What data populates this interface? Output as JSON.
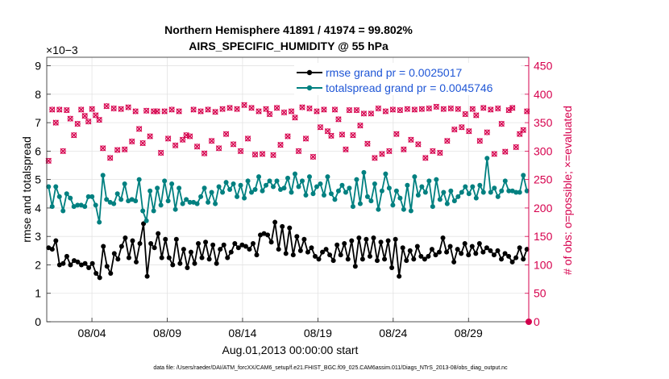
{
  "chart_data": {
    "type": "line",
    "title": "Northern Hemisphere 41891 / 41974 = 99.802%",
    "subtitle": "AIRS_SPECIFIC_HUMIDITY @ 55 hPa",
    "xlabel": "Aug.01,2013 00:00:00 start",
    "ylabel": "rmse and totalspread",
    "y2label": "# of obs: o=possible; ×=evaluated",
    "y_exponent": "×10−3",
    "x_ticks": [
      "08/04",
      "08/09",
      "08/14",
      "08/19",
      "08/24",
      "08/29"
    ],
    "x_tick_days": [
      4,
      9,
      14,
      19,
      24,
      29
    ],
    "xlim_days": [
      1,
      33
    ],
    "ylim": [
      0,
      9.3
    ],
    "y_ticks": [
      "0",
      "1",
      "2",
      "3",
      "4",
      "5",
      "6",
      "7",
      "8",
      "9"
    ],
    "y2lim": [
      0,
      465
    ],
    "y2_ticks": [
      "0",
      "50",
      "100",
      "150",
      "200",
      "250",
      "300",
      "350",
      "400",
      "450"
    ],
    "colors": {
      "rmse": "#000000",
      "spread": "#008080",
      "obs": "#d6004d",
      "legend_text": "#1f56d6"
    },
    "series": [
      {
        "name": "rmse grand pr = 0.0025017",
        "key": "rmse",
        "values": [
          2.6,
          2.55,
          2.85,
          2.0,
          2.05,
          2.3,
          2.0,
          2.15,
          2.1,
          2.0,
          2.05,
          1.9,
          2.05,
          1.7,
          1.55,
          2.65,
          1.95,
          1.7,
          2.4,
          2.2,
          2.65,
          2.95,
          2.25,
          2.85,
          2.1,
          2.75,
          3.45,
          1.6,
          2.75,
          2.6,
          3.1,
          2.25,
          2.9,
          2.25,
          2.0,
          2.9,
          2.05,
          2.55,
          1.9,
          2.45,
          2.05,
          2.75,
          2.25,
          2.8,
          2.2,
          2.7,
          2.05,
          2.55,
          2.7,
          2.25,
          2.45,
          2.75,
          2.6,
          2.7,
          2.65,
          2.55,
          2.75,
          2.35,
          3.05,
          3.1,
          3.05,
          2.8,
          3.5,
          2.55,
          3.35,
          2.4,
          3.3,
          2.35,
          3.0,
          2.5,
          2.9,
          2.45,
          2.6,
          2.3,
          2.2,
          2.45,
          2.55,
          2.35,
          2.15,
          2.7,
          2.35,
          2.75,
          2.2,
          2.85,
          1.95,
          2.95,
          2.2,
          2.9,
          2.3,
          2.95,
          2.15,
          2.8,
          2.2,
          2.85,
          1.9,
          2.9,
          1.6,
          2.6,
          2.15,
          2.5,
          2.2,
          2.65,
          2.3,
          2.2,
          2.3,
          2.55,
          2.35,
          2.45,
          2.95,
          2.45,
          2.65,
          2.1,
          2.55,
          2.4,
          2.75,
          2.35,
          2.65,
          2.4,
          2.75,
          2.45,
          2.6,
          2.5,
          2.35,
          2.5,
          2.2,
          2.4,
          2.3,
          2.1,
          2.25,
          2.6,
          2.2,
          2.55
        ]
      },
      {
        "name": "totalspread grand pr = 0.0045746",
        "key": "spread",
        "values": [
          4.75,
          4.05,
          4.75,
          4.4,
          3.9,
          4.5,
          4.35,
          4.05,
          4.1,
          4.1,
          4.05,
          4.4,
          4.4,
          4.1,
          3.5,
          5.15,
          4.3,
          4.2,
          4.15,
          4.5,
          4.3,
          4.85,
          4.25,
          4.3,
          4.25,
          5.0,
          3.9,
          3.55,
          4.6,
          3.9,
          4.7,
          4.1,
          4.95,
          4.25,
          4.85,
          3.95,
          4.7,
          4.15,
          4.3,
          4.2,
          4.2,
          4.15,
          4.4,
          4.7,
          4.2,
          4.55,
          4.15,
          4.75,
          4.55,
          4.9,
          4.65,
          4.85,
          4.4,
          4.8,
          4.35,
          4.95,
          4.55,
          4.65,
          5.1,
          4.6,
          4.8,
          4.95,
          4.75,
          4.95,
          4.65,
          4.7,
          5.05,
          4.55,
          5.2,
          4.75,
          4.95,
          4.45,
          5.1,
          4.5,
          4.75,
          4.85,
          4.45,
          5.1,
          4.5,
          4.3,
          4.6,
          4.8,
          4.55,
          4.7,
          4.05,
          5.0,
          4.15,
          5.25,
          4.4,
          4.25,
          4.85,
          3.95,
          4.6,
          5.2,
          4.7,
          4.1,
          4.6,
          4.35,
          3.95,
          4.8,
          3.9,
          5.1,
          4.45,
          4.75,
          4.55,
          4.95,
          4.05,
          5.0,
          4.3,
          4.55,
          4.15,
          4.6,
          4.25,
          4.4,
          4.55,
          4.75,
          4.5,
          4.75,
          4.35,
          4.8,
          4.55,
          5.75,
          4.55,
          4.7,
          4.4,
          4.6,
          4.95,
          4.6,
          4.6,
          4.55,
          4.55,
          5.15,
          4.6
        ]
      },
      {
        "name": "# of obs evaluated",
        "key": "obs",
        "axis": "right",
        "values": [
          283,
          373,
          350,
          373,
          300,
          372,
          357,
          328,
          348,
          373,
          362,
          352,
          374,
          363,
          355,
          305,
          379,
          288,
          375,
          302,
          374,
          303,
          377,
          317,
          370,
          339,
          314,
          371,
          326,
          370,
          370,
          297,
          370,
          322,
          373,
          310,
          370,
          320,
          328,
          326,
          373,
          308,
          370,
          296,
          373,
          318,
          369,
          305,
          374,
          330,
          376,
          312,
          374,
          300,
          381,
          322,
          376,
          294,
          370,
          295,
          374,
          365,
          293,
          376,
          311,
          368,
          326,
          370,
          359,
          300,
          377,
          322,
          375,
          290,
          370,
          342,
          373,
          335,
          327,
          373,
          356,
          329,
          303,
          372,
          328,
          372,
          345,
          366,
          313,
          366,
          288,
          375,
          295,
          370,
          300,
          373,
          330,
          372,
          303,
          374,
          320,
          373,
          312,
          374,
          288,
          375,
          300,
          378,
          297,
          374,
          318,
          375,
          338,
          374,
          342,
          365,
          335,
          374,
          363,
          318,
          376,
          333,
          373,
          295,
          375,
          348,
          299,
          372,
          376,
          307,
          330,
          337,
          370
        ]
      }
    ],
    "footer": "data file: /Users/raeder/DAI/ATM_forcXX/CAM6_setup/f.e21.FHIST_BGC.f09_025.CAM6assim.011/Diags_NTrS_2013-08/obs_diag_output.nc"
  }
}
